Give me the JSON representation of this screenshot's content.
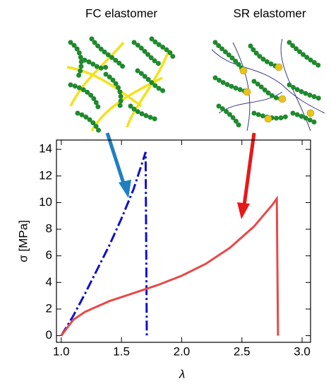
{
  "chart_data": {
    "type": "line",
    "annotations": [
      "FC elastomer",
      "SR elastomer"
    ],
    "x_label": "λ",
    "y_label": "σ [MPa]",
    "xlim": [
      0.96,
      3.07
    ],
    "ylim": [
      -0.5,
      14.7
    ],
    "xticks": [
      {
        "value": 1.0,
        "label": "1.0"
      },
      1.5,
      {
        "value": 2.0,
        "label": "2.0"
      },
      2.5,
      {
        "value": 3.0,
        "label": "3.0"
      }
    ],
    "yticks": [
      0,
      2,
      4,
      6,
      8,
      10,
      12,
      14
    ],
    "series": [
      {
        "color": "#1010c8",
        "dash": "dashdot",
        "x": [
          1.0,
          1.1,
          1.2,
          1.3,
          1.4,
          1.5,
          1.6,
          1.68,
          1.7,
          1.71
        ],
        "values": [
          0,
          1.5,
          3.2,
          5.0,
          6.8,
          8.8,
          11.0,
          13.2,
          13.8,
          0
        ]
      },
      {
        "color": "#e84848",
        "dash": "solid",
        "x": [
          1.0,
          1.1,
          1.2,
          1.4,
          1.6,
          1.8,
          2.0,
          2.2,
          2.4,
          2.6,
          2.75,
          2.79,
          2.8
        ],
        "values": [
          0,
          1.2,
          1.8,
          2.6,
          3.2,
          3.8,
          4.5,
          5.4,
          6.6,
          8.2,
          9.8,
          10.3,
          0
        ]
      }
    ]
  }
}
